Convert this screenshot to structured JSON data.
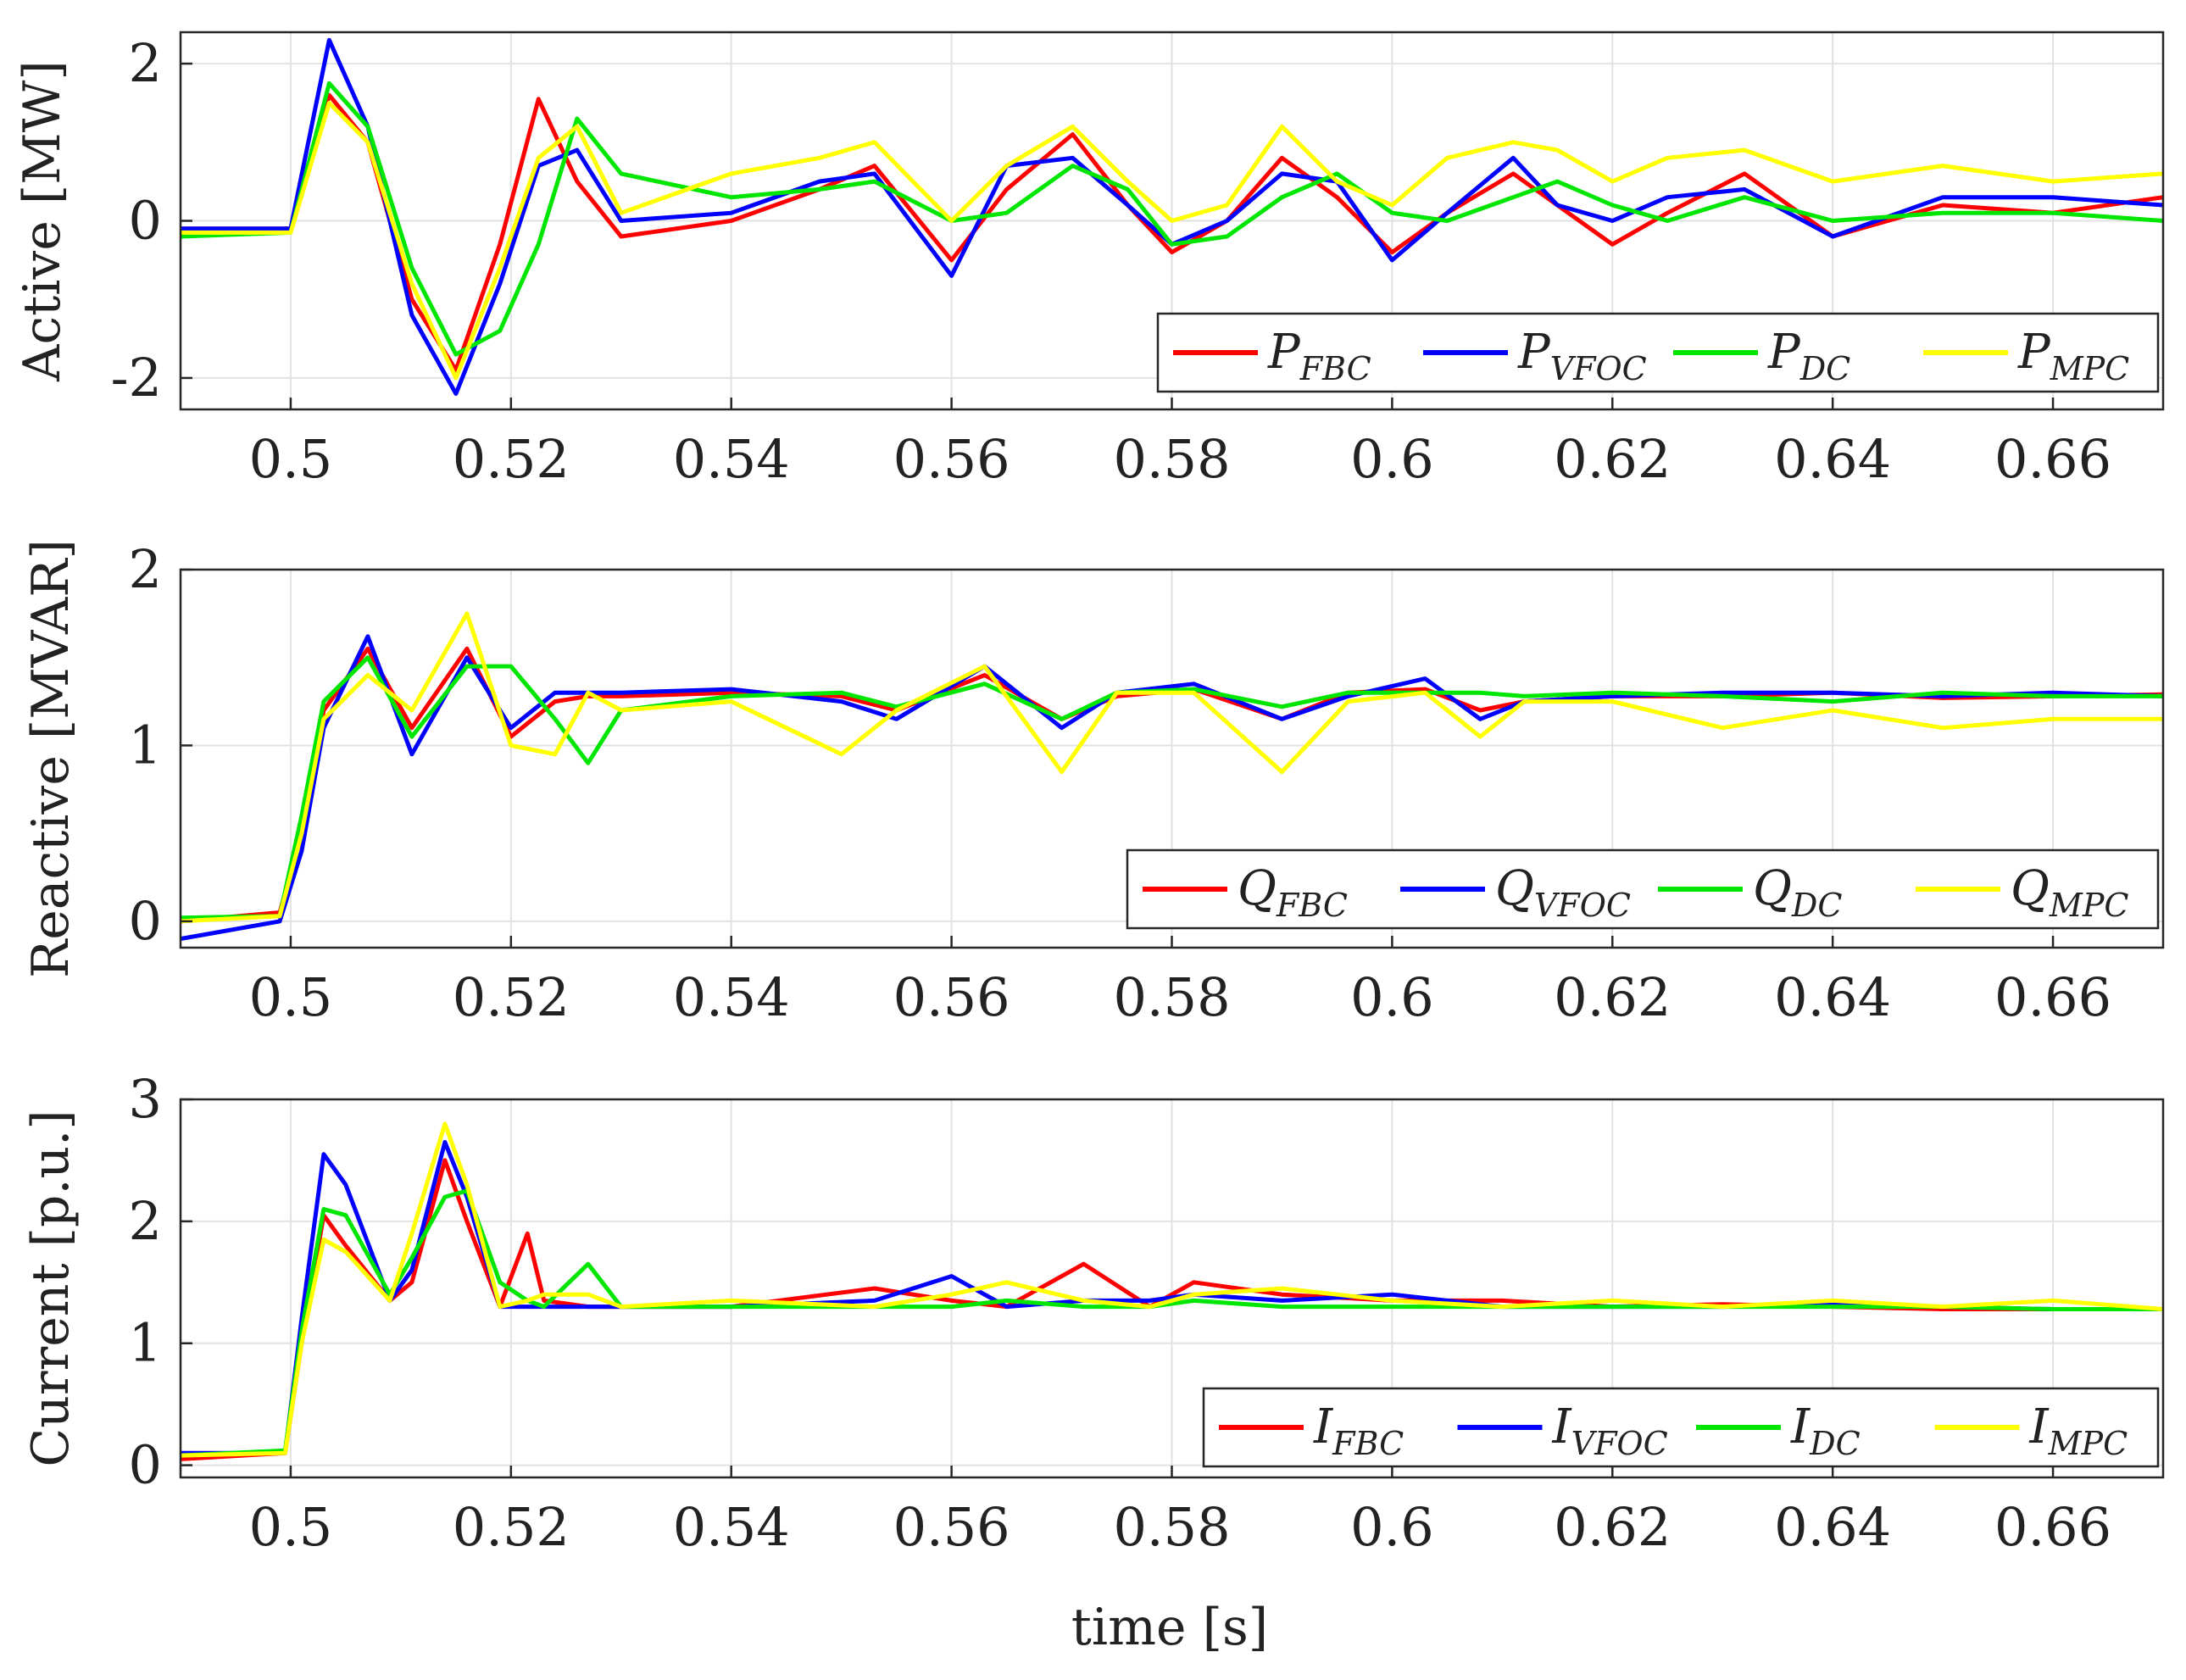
{
  "figure": {
    "xlabel": "time [s]",
    "colors": {
      "FBC": "#ff0000",
      "VFOC": "#0000ff",
      "DC": "#00e600",
      "MPC": "#ffff00"
    }
  },
  "chart_data": [
    {
      "type": "line",
      "title": "",
      "ylabel": "Active [MW]",
      "xlim": [
        0.49,
        0.67
      ],
      "ylim": [
        -2.4,
        2.4
      ],
      "xticks": [
        0.5,
        0.52,
        0.54,
        0.56,
        0.58,
        0.6,
        0.62,
        0.64,
        0.66
      ],
      "xtick_labels": [
        "0.5",
        "0.52",
        "0.54",
        "0.56",
        "0.58",
        "0.6",
        "0.62",
        "0.64",
        "0.66"
      ],
      "yticks": [
        -2,
        0,
        2
      ],
      "ytick_labels": [
        "-2",
        "0",
        "2"
      ],
      "grid": true,
      "legend_position": "bottom-right",
      "x": [
        0.49,
        0.5,
        0.5035,
        0.507,
        0.511,
        0.515,
        0.519,
        0.5225,
        0.526,
        0.53,
        0.54,
        0.548,
        0.553,
        0.56,
        0.565,
        0.571,
        0.576,
        0.58,
        0.585,
        0.59,
        0.595,
        0.6,
        0.605,
        0.611,
        0.615,
        0.62,
        0.625,
        0.632,
        0.64,
        0.65,
        0.66,
        0.67
      ],
      "series": [
        {
          "name": "FBC",
          "label_main": "P",
          "label_sub": "FBC",
          "color": "#ff0000",
          "values": [
            -0.1,
            -0.1,
            1.6,
            1.0,
            -1.0,
            -1.9,
            -0.3,
            1.55,
            0.5,
            -0.2,
            0.0,
            0.4,
            0.7,
            -0.5,
            0.4,
            1.1,
            0.2,
            -0.4,
            0.0,
            0.8,
            0.3,
            -0.4,
            0.1,
            0.6,
            0.2,
            -0.3,
            0.1,
            0.6,
            -0.2,
            0.2,
            0.1,
            0.3
          ]
        },
        {
          "name": "VFOC",
          "label_main": "P",
          "label_sub": "VFOC",
          "color": "#0000ff",
          "values": [
            -0.1,
            -0.1,
            2.3,
            1.2,
            -1.2,
            -2.2,
            -0.8,
            0.7,
            0.9,
            0.0,
            0.1,
            0.5,
            0.6,
            -0.7,
            0.7,
            0.8,
            0.2,
            -0.3,
            0.0,
            0.6,
            0.5,
            -0.5,
            0.1,
            0.8,
            0.2,
            0.0,
            0.3,
            0.4,
            -0.2,
            0.3,
            0.3,
            0.2
          ]
        },
        {
          "name": "DC",
          "label_main": "P",
          "label_sub": "DC",
          "color": "#00e600",
          "values": [
            -0.2,
            -0.15,
            1.75,
            1.2,
            -0.6,
            -1.7,
            -1.4,
            -0.3,
            1.3,
            0.6,
            0.3,
            0.4,
            0.5,
            0.0,
            0.1,
            0.7,
            0.4,
            -0.3,
            -0.2,
            0.3,
            0.6,
            0.1,
            0.0,
            0.3,
            0.5,
            0.2,
            0.0,
            0.3,
            0.0,
            0.1,
            0.1,
            0.0
          ]
        },
        {
          "name": "MPC",
          "label_main": "P",
          "label_sub": "MPC",
          "color": "#ffff00",
          "values": [
            -0.15,
            -0.15,
            1.5,
            1.0,
            -0.8,
            -2.0,
            -0.6,
            0.8,
            1.2,
            0.1,
            0.6,
            0.8,
            1.0,
            0.0,
            0.7,
            1.2,
            0.5,
            0.0,
            0.2,
            1.2,
            0.5,
            0.2,
            0.8,
            1.0,
            0.9,
            0.5,
            0.8,
            0.9,
            0.5,
            0.7,
            0.5,
            0.6
          ]
        }
      ]
    },
    {
      "type": "line",
      "title": "",
      "ylabel": "Reactive [MVAR]",
      "xlim": [
        0.49,
        0.67
      ],
      "ylim": [
        -0.15,
        2.0
      ],
      "xticks": [
        0.5,
        0.52,
        0.54,
        0.56,
        0.58,
        0.6,
        0.62,
        0.64,
        0.66
      ],
      "xtick_labels": [
        "0.5",
        "0.52",
        "0.54",
        "0.56",
        "0.58",
        "0.6",
        "0.62",
        "0.64",
        "0.66"
      ],
      "yticks": [
        0,
        1,
        2
      ],
      "ytick_labels": [
        "0",
        "1",
        "2"
      ],
      "grid": true,
      "legend_position": "bottom-right",
      "x": [
        0.49,
        0.499,
        0.501,
        0.503,
        0.507,
        0.511,
        0.516,
        0.52,
        0.524,
        0.527,
        0.53,
        0.54,
        0.55,
        0.555,
        0.563,
        0.57,
        0.575,
        0.582,
        0.59,
        0.596,
        0.603,
        0.608,
        0.612,
        0.62,
        0.63,
        0.64,
        0.65,
        0.66,
        0.67
      ],
      "series": [
        {
          "name": "FBC",
          "label_main": "Q",
          "label_sub": "FBC",
          "color": "#ff0000",
          "values": [
            0.0,
            0.05,
            0.5,
            1.2,
            1.55,
            1.1,
            1.55,
            1.05,
            1.25,
            1.28,
            1.28,
            1.3,
            1.28,
            1.2,
            1.4,
            1.15,
            1.28,
            1.32,
            1.15,
            1.3,
            1.32,
            1.2,
            1.25,
            1.28,
            1.28,
            1.3,
            1.27,
            1.28,
            1.29
          ]
        },
        {
          "name": "VFOC",
          "label_main": "Q",
          "label_sub": "VFOC",
          "color": "#0000ff",
          "values": [
            -0.1,
            0.0,
            0.4,
            1.1,
            1.62,
            0.95,
            1.5,
            1.1,
            1.3,
            1.3,
            1.3,
            1.32,
            1.25,
            1.15,
            1.45,
            1.1,
            1.3,
            1.35,
            1.15,
            1.28,
            1.38,
            1.15,
            1.25,
            1.28,
            1.3,
            1.3,
            1.28,
            1.3,
            1.28
          ]
        },
        {
          "name": "DC",
          "label_main": "Q",
          "label_sub": "DC",
          "color": "#00e600",
          "values": [
            0.02,
            0.03,
            0.6,
            1.25,
            1.5,
            1.05,
            1.45,
            1.45,
            1.15,
            0.9,
            1.2,
            1.28,
            1.3,
            1.22,
            1.35,
            1.15,
            1.3,
            1.32,
            1.22,
            1.3,
            1.3,
            1.3,
            1.28,
            1.3,
            1.28,
            1.25,
            1.3,
            1.28,
            1.28
          ]
        },
        {
          "name": "MPC",
          "label_main": "Q",
          "label_sub": "MPC",
          "color": "#ffff00",
          "values": [
            0.0,
            0.03,
            0.5,
            1.15,
            1.4,
            1.2,
            1.75,
            1.0,
            0.95,
            1.3,
            1.2,
            1.25,
            0.95,
            1.2,
            1.45,
            0.85,
            1.3,
            1.3,
            0.85,
            1.25,
            1.3,
            1.05,
            1.25,
            1.25,
            1.1,
            1.2,
            1.1,
            1.15,
            1.15
          ]
        }
      ]
    },
    {
      "type": "line",
      "title": "",
      "ylabel": "Current [p.u.]",
      "xlim": [
        0.49,
        0.67
      ],
      "ylim": [
        -0.1,
        3.0
      ],
      "xticks": [
        0.5,
        0.52,
        0.54,
        0.56,
        0.58,
        0.6,
        0.62,
        0.64,
        0.66
      ],
      "xtick_labels": [
        "0.5",
        "0.52",
        "0.54",
        "0.56",
        "0.58",
        "0.6",
        "0.62",
        "0.64",
        "0.66"
      ],
      "yticks": [
        0,
        1,
        2,
        3
      ],
      "ytick_labels": [
        "0",
        "1",
        "2",
        "3"
      ],
      "grid": true,
      "legend_position": "bottom-right",
      "x": [
        0.49,
        0.4995,
        0.501,
        0.503,
        0.505,
        0.509,
        0.511,
        0.514,
        0.516,
        0.519,
        0.5215,
        0.523,
        0.527,
        0.53,
        0.54,
        0.553,
        0.56,
        0.565,
        0.572,
        0.578,
        0.582,
        0.59,
        0.6,
        0.61,
        0.62,
        0.63,
        0.64,
        0.65,
        0.66,
        0.67
      ],
      "series": [
        {
          "name": "FBC",
          "label_main": "I",
          "label_sub": "FBC",
          "color": "#ff0000",
          "values": [
            0.05,
            0.1,
            1.0,
            2.05,
            1.8,
            1.35,
            1.5,
            2.5,
            2.0,
            1.3,
            1.9,
            1.35,
            1.3,
            1.3,
            1.3,
            1.45,
            1.35,
            1.3,
            1.65,
            1.3,
            1.5,
            1.4,
            1.35,
            1.35,
            1.3,
            1.32,
            1.3,
            1.28,
            1.28,
            1.28
          ]
        },
        {
          "name": "VFOC",
          "label_main": "I",
          "label_sub": "VFOC",
          "color": "#0000ff",
          "values": [
            0.1,
            0.1,
            1.2,
            2.55,
            2.3,
            1.35,
            1.6,
            2.65,
            2.2,
            1.3,
            1.3,
            1.3,
            1.3,
            1.3,
            1.3,
            1.35,
            1.55,
            1.3,
            1.35,
            1.35,
            1.4,
            1.35,
            1.4,
            1.3,
            1.3,
            1.3,
            1.32,
            1.3,
            1.28,
            1.28
          ]
        },
        {
          "name": "DC",
          "label_main": "I",
          "label_sub": "DC",
          "color": "#00e600",
          "values": [
            0.08,
            0.12,
            1.1,
            2.1,
            2.05,
            1.4,
            1.7,
            2.2,
            2.25,
            1.5,
            1.35,
            1.3,
            1.65,
            1.3,
            1.3,
            1.3,
            1.3,
            1.35,
            1.3,
            1.3,
            1.35,
            1.3,
            1.3,
            1.3,
            1.3,
            1.3,
            1.3,
            1.3,
            1.28,
            1.28
          ]
        },
        {
          "name": "MPC",
          "label_main": "I",
          "label_sub": "MPC",
          "color": "#ffff00",
          "values": [
            0.08,
            0.1,
            1.0,
            1.85,
            1.75,
            1.35,
            1.9,
            2.8,
            2.3,
            1.3,
            1.35,
            1.4,
            1.4,
            1.3,
            1.35,
            1.3,
            1.4,
            1.5,
            1.35,
            1.3,
            1.4,
            1.45,
            1.35,
            1.3,
            1.35,
            1.3,
            1.35,
            1.3,
            1.35,
            1.28
          ]
        }
      ]
    }
  ]
}
